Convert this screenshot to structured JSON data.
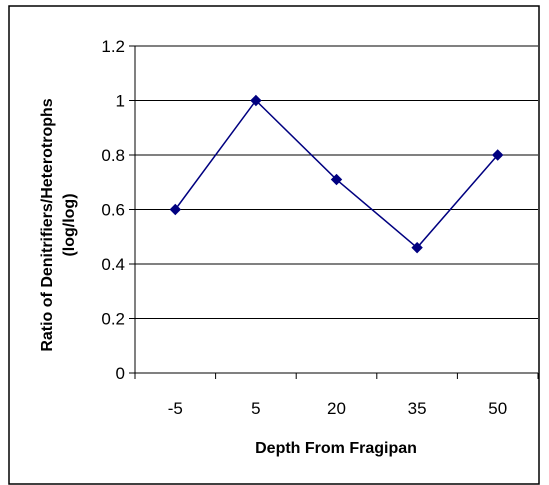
{
  "chart_data": {
    "type": "line",
    "title": "",
    "xlabel": "Depth From Fragipan",
    "ylabel_lines": [
      "Ratio of Denitrifiers/Heterotrophs",
      "(log/log)"
    ],
    "categories": [
      "-5",
      "5",
      "20",
      "35",
      "50"
    ],
    "series": [
      {
        "values": [
          0.6,
          1.0,
          0.71,
          0.46,
          0.8
        ]
      }
    ],
    "ylim": [
      0,
      1.2
    ],
    "yticks": [
      "0",
      "0.2",
      "0.4",
      "0.6",
      "0.8",
      "1",
      "1.2"
    ],
    "grid": true,
    "legend": "none",
    "colors": {
      "series": "#000080",
      "grid": "#000000",
      "frame": "#000000"
    }
  }
}
